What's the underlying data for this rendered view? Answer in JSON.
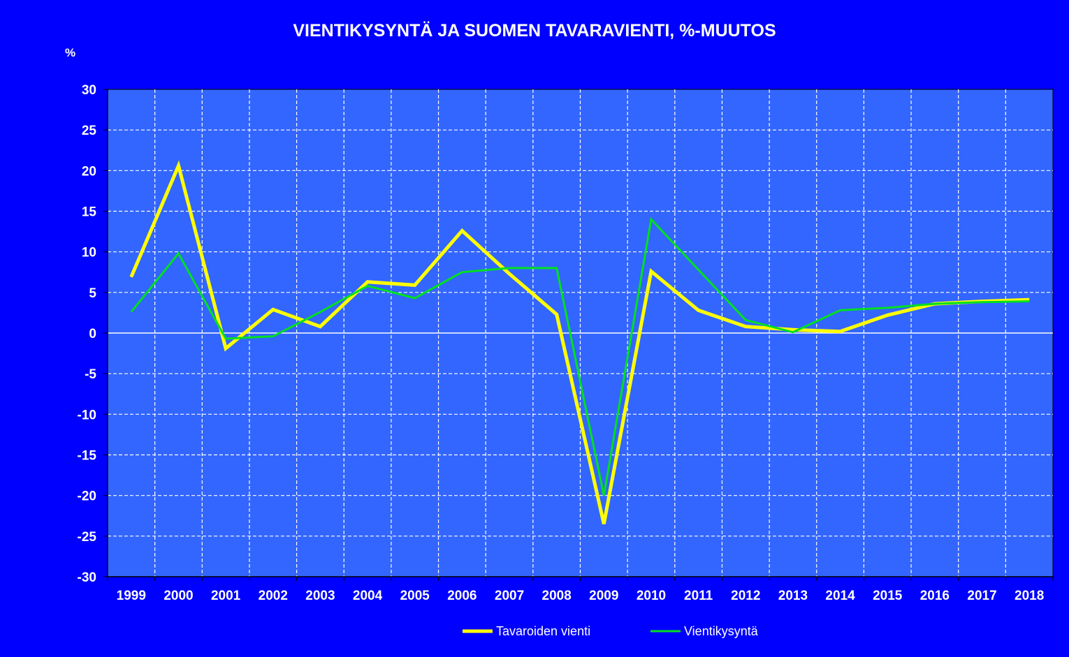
{
  "chart_data": {
    "type": "line",
    "title": "VIENTIKYSYNTÄ JA SUOMEN TAVARAVIENTI, %-MUUTOS",
    "y_unit": "%",
    "xlabel": "",
    "ylabel": "",
    "ylim": [
      -30,
      30
    ],
    "y_ticks": [
      30,
      25,
      20,
      15,
      10,
      5,
      0,
      -5,
      -10,
      -15,
      -20,
      -25,
      -30
    ],
    "grid": true,
    "legend_position": "bottom-center",
    "categories": [
      "1999",
      "2000",
      "2001",
      "2002",
      "2003",
      "2004",
      "2005",
      "2006",
      "2007",
      "2008",
      "2009",
      "2010",
      "2011",
      "2012",
      "2013",
      "2014",
      "2015",
      "2016",
      "2017",
      "2018"
    ],
    "series": [
      {
        "name": "Tavaroiden vienti",
        "color": "#ffff00",
        "values": [
          6.9,
          20.6,
          -1.9,
          2.9,
          0.8,
          6.3,
          5.9,
          12.6,
          7.3,
          2.3,
          -23.5,
          7.6,
          2.8,
          0.8,
          0.4,
          0.2,
          2.2,
          3.6,
          3.9,
          4.1
        ]
      },
      {
        "name": "Vientikysyntä",
        "color": "#00e020",
        "values": [
          2.6,
          9.8,
          -0.7,
          -0.4,
          2.6,
          5.8,
          4.3,
          7.5,
          8.0,
          8.0,
          -20.0,
          14.0,
          7.8,
          1.6,
          0.1,
          2.8,
          3.1,
          3.6,
          3.8,
          3.9
        ]
      }
    ]
  }
}
